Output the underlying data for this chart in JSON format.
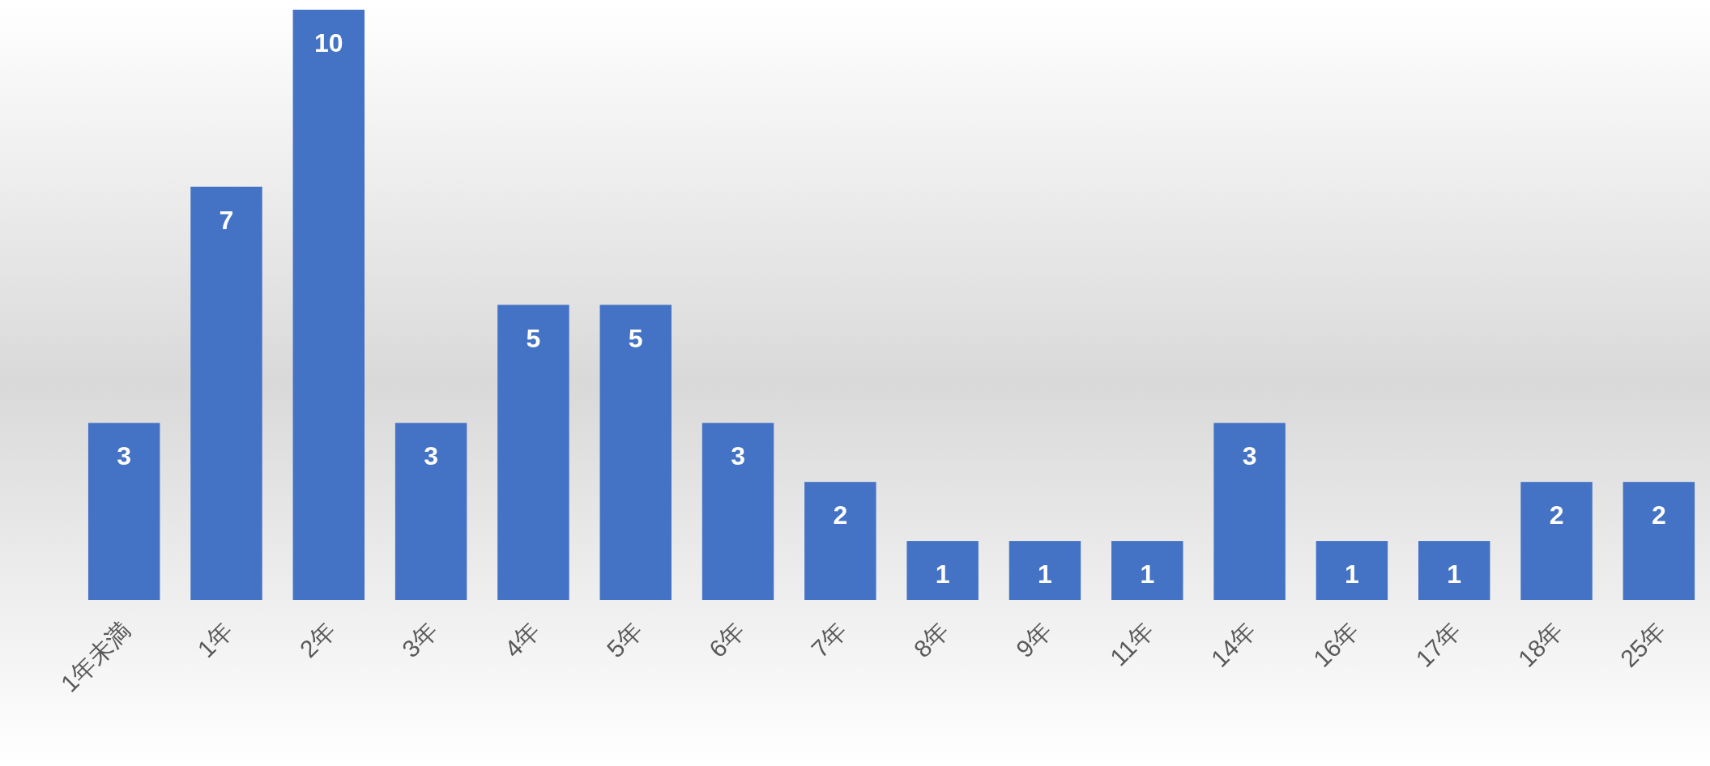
{
  "chart_data": {
    "type": "bar",
    "categories": [
      "1年未満",
      "1年",
      "2年",
      "3年",
      "4年",
      "5年",
      "6年",
      "7年",
      "8年",
      "9年",
      "11年",
      "14年",
      "16年",
      "17年",
      "18年",
      "25年"
    ],
    "values": [
      3,
      7,
      10,
      3,
      5,
      5,
      3,
      2,
      1,
      1,
      1,
      3,
      1,
      1,
      2,
      2
    ],
    "color": "#4472c4",
    "data_labels": true
  }
}
